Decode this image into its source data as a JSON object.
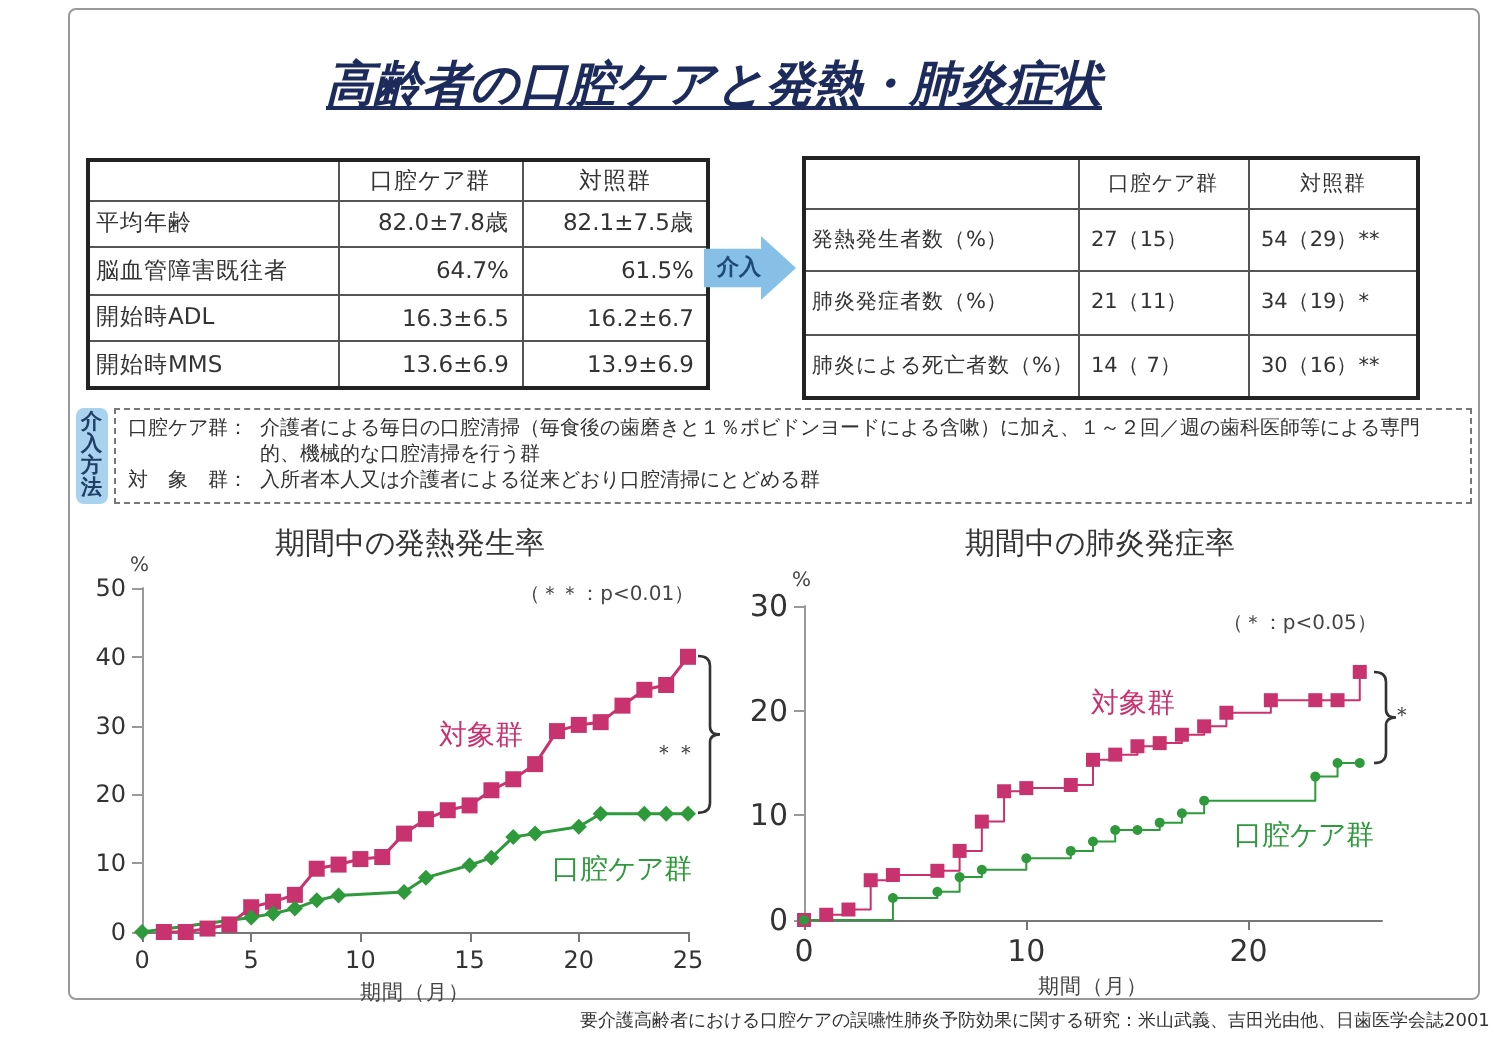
{
  "chart_data": [
    {
      "type": "other",
      "title": "高齢者の口腔ケアと発熱・肺炎症状",
      "categories": [
        "口腔ケア群",
        "対照群"
      ],
      "y_categories": [
        "平均年齢",
        "脳血管障害既往者",
        "開始時ADL",
        "開始時MMS"
      ],
      "cell_labels": [
        [
          "82.0±7.8歳",
          "82.1±7.5歳"
        ],
        [
          "64.7%",
          "61.5%"
        ],
        [
          "16.3±6.5",
          "16.2±6.7"
        ],
        [
          "13.6±6.9",
          "13.9±6.9"
        ]
      ],
      "annotations": [
        "要介護高齢者における口腔ケアの誤嚥性肺炎予防効果に関する研究：米山武義、吉田光由他、日歯医学会誌2001"
      ]
    },
    {
      "type": "other",
      "annotations": [
        "介入"
      ],
      "categories": [
        "口腔ケア群",
        "対照群"
      ],
      "y_categories": [
        "発熱発生者数（%）",
        "肺炎発症者数（%）",
        "肺炎による死亡者数（%）"
      ],
      "cell_labels": [
        [
          "27（15）",
          "54（29）**"
        ],
        [
          "21（11）",
          "34（19）*"
        ],
        [
          "14（ 7）",
          "30（16）**"
        ]
      ]
    },
    {
      "type": "other",
      "title": "介入方法",
      "y_categories": [
        "口腔ケア群：",
        "対　象　群："
      ],
      "cell_labels": [
        [
          "介護者による毎日の口腔清掃（毎食後の歯磨きと１％ポビドンヨードによる含嗽）に加え、１～２回／週の歯科医師等による専門的、機械的な口腔清掃を行う群"
        ],
        [
          "入所者本人又は介護者による従来どおり口腔清掃にとどめる群"
        ]
      ]
    },
    {
      "type": "line",
      "title": "期間中の発熱発生率",
      "xlabel": "期間（月）",
      "ylabel": "%",
      "xlim": [
        0,
        25
      ],
      "xticks": [
        0,
        5,
        10,
        15,
        20,
        25
      ],
      "ylim": [
        0,
        50
      ],
      "yticks": [
        0,
        10,
        20,
        30,
        40,
        50
      ],
      "annotations": [
        "（＊＊：p<0.01）",
        "＊＊"
      ],
      "series": [
        {
          "name": "対象群",
          "color": "#c8326e",
          "marker": "square",
          "x": [
            1,
            2,
            3,
            4,
            5,
            6,
            7,
            8,
            9,
            10,
            11,
            12,
            13,
            14,
            15,
            16,
            17,
            18,
            19,
            20,
            21,
            22,
            23,
            24,
            25
          ],
          "values": [
            0,
            0,
            0.5,
            1.1,
            3.6,
            4.4,
            5.4,
            9.2,
            9.8,
            10.6,
            10.9,
            14.3,
            16.4,
            17.7,
            18.4,
            20.6,
            22.2,
            24.4,
            29.2,
            30.1,
            30.5,
            32.9,
            35.2,
            35.9,
            40.0
          ]
        },
        {
          "name": "口腔ケア群",
          "color": "#2f9a3c",
          "marker": "diamond",
          "x": [
            0,
            5,
            6,
            7,
            8,
            9,
            12,
            13,
            15,
            16,
            17,
            18,
            20,
            21,
            23,
            24,
            25
          ],
          "values": [
            0,
            2.1,
            2.7,
            3.4,
            4.6,
            5.3,
            5.8,
            7.9,
            9.7,
            10.8,
            13.8,
            14.3,
            15.3,
            17.2,
            17.2,
            17.2,
            17.2
          ]
        }
      ]
    },
    {
      "type": "step",
      "title": "期間中の肺炎発症率",
      "xlabel": "期間（月）",
      "ylabel": "%",
      "xlim": [
        0,
        26
      ],
      "xticks": [
        0,
        10,
        20
      ],
      "ylim": [
        0,
        30
      ],
      "yticks": [
        0,
        10,
        20,
        30
      ],
      "annotations": [
        "（＊：p<0.05）",
        "＊"
      ],
      "series": [
        {
          "name": "対象群",
          "color": "#c8326e",
          "marker": "square",
          "x": [
            0,
            1,
            2,
            3,
            4,
            6,
            7,
            8,
            9,
            10,
            12,
            13,
            14,
            15,
            16,
            17,
            18,
            19,
            21,
            23,
            24,
            25
          ],
          "values": [
            0,
            0.5,
            1.0,
            3.8,
            4.3,
            4.7,
            6.6,
            9.4,
            12.3,
            12.6,
            12.9,
            15.3,
            15.8,
            16.6,
            16.9,
            17.7,
            18.5,
            19.8,
            21.0,
            21.0,
            21.0,
            23.7
          ]
        },
        {
          "name": "口腔ケア群",
          "color": "#2f9a3c",
          "marker": "circle",
          "x": [
            0,
            4,
            6,
            7,
            8,
            10,
            12,
            13,
            14,
            15,
            16,
            17,
            18,
            23,
            24,
            25
          ],
          "values": [
            0,
            2.1,
            2.7,
            4.1,
            4.8,
            5.9,
            6.6,
            7.5,
            8.6,
            8.6,
            9.3,
            10.2,
            11.4,
            13.7,
            15.0,
            15.0
          ]
        }
      ]
    }
  ]
}
